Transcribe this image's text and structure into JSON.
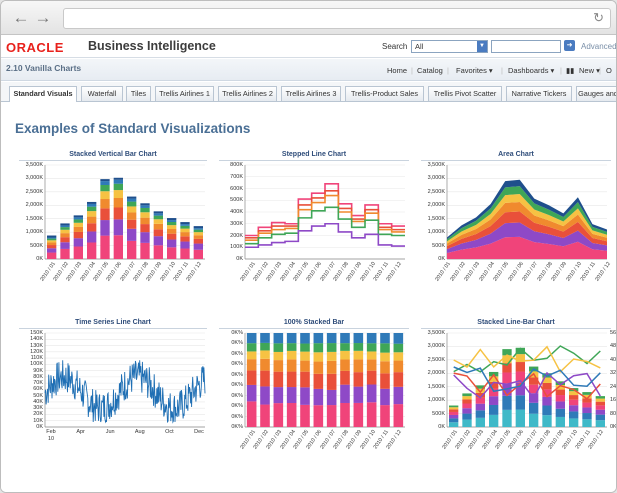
{
  "browser": {
    "back_icon": "back-arrow-icon",
    "forward_icon": "forward-arrow-icon",
    "reload_icon": "reload-icon"
  },
  "header": {
    "logo": "ORACLE",
    "title": "Business Intelligence",
    "search_label": "Search",
    "search_scope": "All",
    "advanced_label": "Advanced"
  },
  "subheader": {
    "page_title": "2.10 Vanilla Charts",
    "nav": [
      "Home",
      "Catalog",
      "Favorites ▾",
      "Dashboards ▾",
      "New ▾",
      "O"
    ]
  },
  "tabs": [
    "Standard Visuals",
    "Waterfall",
    "Tiles",
    "Trellis Airlines 1",
    "Trellis Airlines 2",
    "Trellis Airlines 3",
    "Trellis-Product Sales",
    "Trellis Pivot Scatter",
    "Narrative Tickers",
    "Gauges and"
  ],
  "section_title": "Examples of Standard Visualizations",
  "colors": {
    "series": [
      "#f0447a",
      "#8e49c7",
      "#e9503a",
      "#f08a2e",
      "#f6c243",
      "#3fa657",
      "#2f7ab8",
      "#1f4f8c"
    ]
  },
  "chart_data": [
    {
      "type": "bar",
      "title": "Stacked Vertical Bar Chart",
      "ylim": [
        0,
        3500
      ],
      "y_ticks": [
        "3,500K",
        "3,000K",
        "2,500K",
        "2,000K",
        "1,500K",
        "1,000K",
        "500K",
        "0K"
      ],
      "categories": [
        "2010 / 01",
        "2010 / 02",
        "2010 / 03",
        "2010 / 04",
        "2010 / 05",
        "2010 / 06",
        "2010 / 07",
        "2010 / 08",
        "2010 / 09",
        "2010 / 10",
        "2010 / 11",
        "2010 / 12"
      ],
      "totals": [
        800,
        1250,
        1550,
        2050,
        2900,
        2950,
        2250,
        2000,
        1700,
        1450,
        1300,
        1150
      ]
    },
    {
      "type": "line",
      "title": "Stepped Line Chart",
      "ylim": [
        0,
        800
      ],
      "y_ticks": [
        "800K",
        "700K",
        "600K",
        "500K",
        "400K",
        "300K",
        "200K",
        "100K",
        "0K"
      ],
      "categories": [
        "2010 / 01",
        "2010 / 02",
        "2010 / 03",
        "2010 / 04",
        "2010 / 05",
        "2010 / 06",
        "2010 / 07",
        "2010 / 08",
        "2010 / 09",
        "2010 / 10",
        "2010 / 11",
        "2010 / 12"
      ],
      "series": [
        {
          "values": [
            200,
            270,
            310,
            300,
            510,
            560,
            640,
            470,
            370,
            460,
            300,
            280
          ]
        },
        {
          "values": [
            180,
            240,
            280,
            280,
            460,
            520,
            580,
            430,
            340,
            420,
            270,
            250
          ]
        },
        {
          "values": [
            160,
            220,
            250,
            260,
            420,
            480,
            540,
            400,
            320,
            390,
            250,
            230
          ]
        },
        {
          "values": [
            130,
            180,
            210,
            220,
            350,
            410,
            440,
            340,
            270,
            330,
            210,
            200
          ]
        },
        {
          "values": [
            100,
            120,
            140,
            150,
            240,
            280,
            300,
            230,
            180,
            210,
            120,
            110
          ]
        }
      ]
    },
    {
      "type": "area",
      "title": "Area Chart",
      "ylim": [
        0,
        3500
      ],
      "y_ticks": [
        "3,500K",
        "3,000K",
        "2,500K",
        "2,000K",
        "1,500K",
        "1,000K",
        "500K",
        "0K"
      ],
      "categories": [
        "2010 / 01",
        "2010 / 02",
        "2010 / 03",
        "2010 / 04",
        "2010 / 05",
        "2010 / 06",
        "2010 / 07",
        "2010 / 08",
        "2010 / 09",
        "2010 / 10",
        "2010 / 11",
        "2010 / 12"
      ],
      "totals": [
        800,
        1250,
        1550,
        2050,
        2900,
        2950,
        2250,
        2000,
        1700,
        2300,
        1300,
        1100
      ]
    },
    {
      "type": "line",
      "title": "Time Series Line Chart",
      "ylim": [
        0,
        150
      ],
      "y_ticks": [
        "150K",
        "140K",
        "130K",
        "120K",
        "110K",
        "100K",
        "90K",
        "80K",
        "70K",
        "60K",
        "50K",
        "40K",
        "30K",
        "20K",
        "10K",
        "0K"
      ],
      "x_ticks": [
        "Feb",
        "Apr",
        "Jun",
        "Aug",
        "Oct",
        "Dec"
      ],
      "x_year": "10"
    },
    {
      "type": "bar",
      "title": "100% Stacked Bar",
      "ylim": [
        0,
        100
      ],
      "y_ticks": [
        "0K%",
        "0K%",
        "0K%",
        "0K%",
        "0K%",
        "0K%",
        "0K%",
        "0K%",
        "0K%",
        "0K%"
      ],
      "categories": [
        "2010 / 01",
        "2010 / 02",
        "2010 / 03",
        "2010 / 04",
        "2010 / 05",
        "2010 / 06",
        "2010 / 07",
        "2010 / 08",
        "2010 / 09",
        "2010 / 10",
        "2010 / 11",
        "2010 / 12"
      ],
      "shares": [
        0.28,
        0.2,
        0.18,
        0.14,
        0.1,
        0.1
      ]
    },
    {
      "type": "bar",
      "title": "Stacked Line-Bar Chart",
      "ylim": [
        0,
        3500
      ],
      "y_ticks": [
        "3,500K",
        "3,000K",
        "2,500K",
        "2,000K",
        "1,500K",
        "1,000K",
        "500K",
        "0K"
      ],
      "y2_ticks": [
        "560K",
        "480K",
        "400K",
        "320K",
        "240K",
        "160K",
        "80K",
        "0K"
      ],
      "categories": [
        "2010 / 01",
        "2010 / 02",
        "2010 / 03",
        "2010 / 04",
        "2010 / 05",
        "2010 / 06",
        "2010 / 07",
        "2010 / 08",
        "2010 / 09",
        "2010 / 10",
        "2010 / 11",
        "2010 / 12"
      ],
      "totals": [
        800,
        1250,
        1550,
        2050,
        2900,
        2950,
        2250,
        2000,
        1700,
        1450,
        1300,
        1150
      ]
    }
  ]
}
